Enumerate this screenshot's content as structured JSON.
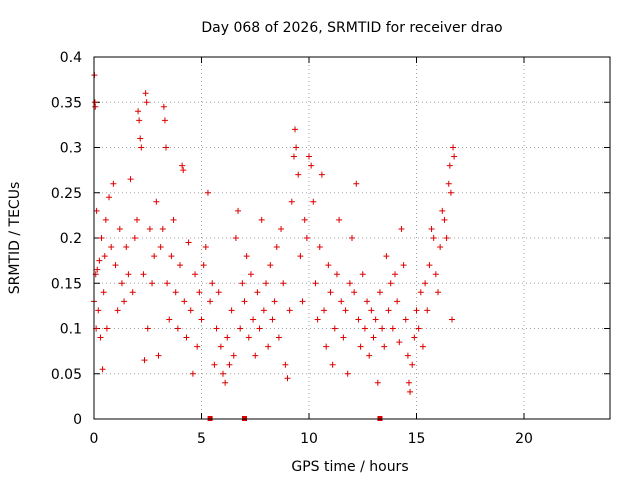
{
  "chart_data": {
    "type": "scatter",
    "title": "Day 068 of 2026, SRMTID for receiver drao",
    "xlabel": "GPS time / hours",
    "ylabel": "SRMTID / TECUs",
    "xlim": [
      0,
      24
    ],
    "ylim": [
      0,
      0.4
    ],
    "x_ticks": [
      0,
      5,
      10,
      15,
      20
    ],
    "x_tick_labels": [
      "0",
      "5",
      "10",
      "15",
      "20"
    ],
    "y_ticks": [
      0,
      0.05,
      0.1,
      0.15,
      0.2,
      0.25,
      0.3,
      0.35,
      0.4
    ],
    "y_tick_labels": [
      "0",
      "0.05",
      "0.1",
      "0.15",
      "0.2",
      "0.25",
      "0.3",
      "0.35",
      "0.4"
    ],
    "grid": true,
    "marker": "+",
    "color": "#dd0000",
    "data_gaps_at_zero": [
      5.4,
      7.0,
      13.3
    ],
    "series": [
      {
        "name": "SRMTID",
        "points": [
          [
            0.0,
            0.13
          ],
          [
            0.02,
            0.38
          ],
          [
            0.04,
            0.35
          ],
          [
            0.06,
            0.345
          ],
          [
            0.08,
            0.16
          ],
          [
            0.1,
            0.1
          ],
          [
            0.12,
            0.23
          ],
          [
            0.15,
            0.165
          ],
          [
            0.2,
            0.12
          ],
          [
            0.25,
            0.175
          ],
          [
            0.3,
            0.09
          ],
          [
            0.35,
            0.2
          ],
          [
            0.4,
            0.055
          ],
          [
            0.45,
            0.14
          ],
          [
            0.5,
            0.18
          ],
          [
            0.55,
            0.22
          ],
          [
            0.6,
            0.1
          ],
          [
            0.7,
            0.245
          ],
          [
            0.8,
            0.19
          ],
          [
            0.9,
            0.26
          ],
          [
            1.0,
            0.17
          ],
          [
            1.1,
            0.12
          ],
          [
            1.2,
            0.21
          ],
          [
            1.3,
            0.15
          ],
          [
            1.4,
            0.13
          ],
          [
            1.5,
            0.19
          ],
          [
            1.6,
            0.16
          ],
          [
            1.7,
            0.265
          ],
          [
            1.8,
            0.14
          ],
          [
            1.9,
            0.2
          ],
          [
            2.0,
            0.22
          ],
          [
            2.05,
            0.34
          ],
          [
            2.1,
            0.33
          ],
          [
            2.15,
            0.31
          ],
          [
            2.2,
            0.3
          ],
          [
            2.3,
            0.16
          ],
          [
            2.35,
            0.065
          ],
          [
            2.4,
            0.36
          ],
          [
            2.45,
            0.35
          ],
          [
            2.5,
            0.1
          ],
          [
            2.6,
            0.21
          ],
          [
            2.7,
            0.15
          ],
          [
            2.8,
            0.18
          ],
          [
            2.9,
            0.24
          ],
          [
            3.0,
            0.07
          ],
          [
            3.1,
            0.19
          ],
          [
            3.2,
            0.21
          ],
          [
            3.25,
            0.345
          ],
          [
            3.3,
            0.33
          ],
          [
            3.35,
            0.3
          ],
          [
            3.4,
            0.15
          ],
          [
            3.5,
            0.11
          ],
          [
            3.6,
            0.18
          ],
          [
            3.7,
            0.22
          ],
          [
            3.8,
            0.14
          ],
          [
            3.9,
            0.1
          ],
          [
            4.0,
            0.17
          ],
          [
            4.1,
            0.28
          ],
          [
            4.15,
            0.275
          ],
          [
            4.2,
            0.13
          ],
          [
            4.3,
            0.09
          ],
          [
            4.4,
            0.195
          ],
          [
            4.5,
            0.12
          ],
          [
            4.6,
            0.05
          ],
          [
            4.7,
            0.16
          ],
          [
            4.8,
            0.08
          ],
          [
            4.9,
            0.14
          ],
          [
            5.0,
            0.11
          ],
          [
            5.1,
            0.17
          ],
          [
            5.2,
            0.19
          ],
          [
            5.3,
            0.25
          ],
          [
            5.4,
            0.13
          ],
          [
            5.5,
            0.15
          ],
          [
            5.6,
            0.06
          ],
          [
            5.7,
            0.1
          ],
          [
            5.8,
            0.14
          ],
          [
            5.9,
            0.08
          ],
          [
            6.0,
            0.05
          ],
          [
            6.1,
            0.04
          ],
          [
            6.2,
            0.09
          ],
          [
            6.3,
            0.06
          ],
          [
            6.4,
            0.12
          ],
          [
            6.5,
            0.07
          ],
          [
            6.6,
            0.2
          ],
          [
            6.7,
            0.23
          ],
          [
            6.8,
            0.1
          ],
          [
            6.9,
            0.15
          ],
          [
            7.0,
            0.13
          ],
          [
            7.1,
            0.18
          ],
          [
            7.2,
            0.09
          ],
          [
            7.3,
            0.16
          ],
          [
            7.4,
            0.11
          ],
          [
            7.5,
            0.07
          ],
          [
            7.6,
            0.14
          ],
          [
            7.7,
            0.1
          ],
          [
            7.8,
            0.22
          ],
          [
            7.9,
            0.12
          ],
          [
            8.0,
            0.15
          ],
          [
            8.1,
            0.08
          ],
          [
            8.2,
            0.17
          ],
          [
            8.3,
            0.11
          ],
          [
            8.4,
            0.13
          ],
          [
            8.5,
            0.19
          ],
          [
            8.6,
            0.09
          ],
          [
            8.7,
            0.21
          ],
          [
            8.8,
            0.15
          ],
          [
            8.9,
            0.06
          ],
          [
            9.0,
            0.045
          ],
          [
            9.1,
            0.12
          ],
          [
            9.2,
            0.24
          ],
          [
            9.3,
            0.29
          ],
          [
            9.35,
            0.32
          ],
          [
            9.4,
            0.3
          ],
          [
            9.5,
            0.27
          ],
          [
            9.6,
            0.18
          ],
          [
            9.7,
            0.13
          ],
          [
            9.8,
            0.22
          ],
          [
            9.9,
            0.2
          ],
          [
            10.0,
            0.29
          ],
          [
            10.1,
            0.28
          ],
          [
            10.2,
            0.24
          ],
          [
            10.3,
            0.15
          ],
          [
            10.4,
            0.11
          ],
          [
            10.5,
            0.19
          ],
          [
            10.6,
            0.27
          ],
          [
            10.7,
            0.12
          ],
          [
            10.8,
            0.08
          ],
          [
            10.9,
            0.17
          ],
          [
            11.0,
            0.14
          ],
          [
            11.1,
            0.06
          ],
          [
            11.2,
            0.1
          ],
          [
            11.3,
            0.16
          ],
          [
            11.4,
            0.22
          ],
          [
            11.5,
            0.13
          ],
          [
            11.6,
            0.09
          ],
          [
            11.7,
            0.12
          ],
          [
            11.8,
            0.05
          ],
          [
            11.9,
            0.15
          ],
          [
            12.0,
            0.2
          ],
          [
            12.1,
            0.14
          ],
          [
            12.2,
            0.26
          ],
          [
            12.3,
            0.11
          ],
          [
            12.4,
            0.08
          ],
          [
            12.5,
            0.16
          ],
          [
            12.6,
            0.1
          ],
          [
            12.7,
            0.13
          ],
          [
            12.8,
            0.07
          ],
          [
            12.9,
            0.12
          ],
          [
            13.0,
            0.09
          ],
          [
            13.1,
            0.11
          ],
          [
            13.2,
            0.04
          ],
          [
            13.3,
            0.14
          ],
          [
            13.4,
            0.1
          ],
          [
            13.5,
            0.08
          ],
          [
            13.6,
            0.18
          ],
          [
            13.7,
            0.12
          ],
          [
            13.8,
            0.15
          ],
          [
            13.9,
            0.1
          ],
          [
            14.0,
            0.16
          ],
          [
            14.1,
            0.13
          ],
          [
            14.2,
            0.085
          ],
          [
            14.3,
            0.21
          ],
          [
            14.4,
            0.17
          ],
          [
            14.5,
            0.11
          ],
          [
            14.6,
            0.07
          ],
          [
            14.65,
            0.04
          ],
          [
            14.7,
            0.03
          ],
          [
            14.8,
            0.06
          ],
          [
            14.9,
            0.09
          ],
          [
            15.0,
            0.12
          ],
          [
            15.1,
            0.1
          ],
          [
            15.2,
            0.14
          ],
          [
            15.3,
            0.08
          ],
          [
            15.4,
            0.15
          ],
          [
            15.5,
            0.12
          ],
          [
            15.6,
            0.17
          ],
          [
            15.7,
            0.21
          ],
          [
            15.8,
            0.2
          ],
          [
            15.9,
            0.16
          ],
          [
            16.0,
            0.14
          ],
          [
            16.1,
            0.19
          ],
          [
            16.2,
            0.23
          ],
          [
            16.3,
            0.22
          ],
          [
            16.4,
            0.2
          ],
          [
            16.5,
            0.26
          ],
          [
            16.55,
            0.28
          ],
          [
            16.6,
            0.25
          ],
          [
            16.65,
            0.11
          ],
          [
            16.7,
            0.3
          ],
          [
            16.75,
            0.29
          ]
        ]
      }
    ]
  }
}
